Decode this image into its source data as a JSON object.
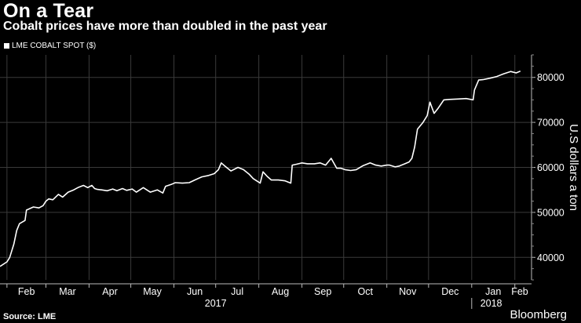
{
  "header": {
    "title": "On a Tear",
    "subtitle": "Cobalt prices have more than doubled in the past year"
  },
  "footer": {
    "source": "Source: LME",
    "brand": "Bloomberg"
  },
  "colors": {
    "background": "#000000",
    "line": "#ffffff",
    "grid": "#3a3a3a",
    "text": "#ffffff"
  },
  "chart_data": {
    "type": "line",
    "title": "On a Tear",
    "subtitle": "Cobalt prices have more than doubled in the past year",
    "xlabel": "",
    "ylabel": "U.S dollars a ton",
    "ylim": [
      35000,
      85000
    ],
    "yticks": [
      40000,
      50000,
      60000,
      70000,
      80000
    ],
    "ytick_labels": [
      "40000",
      "50000",
      "60000",
      "70000",
      "80000"
    ],
    "y_axis_side": "right",
    "grid": true,
    "legend_position": "top-left",
    "xlim": [
      "2017-01-27",
      "2018-02-13"
    ],
    "month_ticks": [
      {
        "label": "Feb",
        "date": "2017-02-01"
      },
      {
        "label": "Mar",
        "date": "2017-03-01"
      },
      {
        "label": "Apr",
        "date": "2017-04-01"
      },
      {
        "label": "May",
        "date": "2017-05-01"
      },
      {
        "label": "Jun",
        "date": "2017-06-01"
      },
      {
        "label": "Jul",
        "date": "2017-07-01"
      },
      {
        "label": "Aug",
        "date": "2017-08-01"
      },
      {
        "label": "Sep",
        "date": "2017-09-01"
      },
      {
        "label": "Oct",
        "date": "2017-10-01"
      },
      {
        "label": "Nov",
        "date": "2017-11-01"
      },
      {
        "label": "Dec",
        "date": "2017-12-01"
      },
      {
        "label": "Jan",
        "date": "2018-01-01"
      },
      {
        "label": "Feb",
        "date": "2018-02-01"
      }
    ],
    "year_labels": [
      {
        "label": "2017",
        "date": "2017-07-01"
      },
      {
        "label": "2018",
        "date": "2018-01-15"
      }
    ],
    "year_divider_date": "2018-01-01",
    "series": [
      {
        "name": "LME COBALT SPOT ($)",
        "x": [
          "2017-01-27",
          "2017-02-01",
          "2017-02-03",
          "2017-02-06",
          "2017-02-08",
          "2017-02-10",
          "2017-02-14",
          "2017-02-15",
          "2017-02-20",
          "2017-02-24",
          "2017-02-27",
          "2017-03-01",
          "2017-03-03",
          "2017-03-06",
          "2017-03-10",
          "2017-03-13",
          "2017-03-17",
          "2017-03-21",
          "2017-03-24",
          "2017-03-28",
          "2017-03-31",
          "2017-04-03",
          "2017-04-05",
          "2017-04-07",
          "2017-04-10",
          "2017-04-14",
          "2017-04-18",
          "2017-04-21",
          "2017-04-25",
          "2017-04-28",
          "2017-05-02",
          "2017-05-05",
          "2017-05-10",
          "2017-05-15",
          "2017-05-20",
          "2017-05-24",
          "2017-05-26",
          "2017-05-30",
          "2017-06-02",
          "2017-06-07",
          "2017-06-12",
          "2017-06-16",
          "2017-06-21",
          "2017-06-26",
          "2017-06-30",
          "2017-07-03",
          "2017-07-05",
          "2017-07-08",
          "2017-07-12",
          "2017-07-17",
          "2017-07-21",
          "2017-07-25",
          "2017-07-28",
          "2017-08-02",
          "2017-08-04",
          "2017-08-07",
          "2017-08-10",
          "2017-08-15",
          "2017-08-20",
          "2017-08-24",
          "2017-08-25",
          "2017-08-28",
          "2017-09-01",
          "2017-09-05",
          "2017-09-10",
          "2017-09-14",
          "2017-09-18",
          "2017-09-22",
          "2017-09-26",
          "2017-09-29",
          "2017-10-02",
          "2017-10-06",
          "2017-10-10",
          "2017-10-15",
          "2017-10-20",
          "2017-10-24",
          "2017-10-28",
          "2017-11-01",
          "2017-11-03",
          "2017-11-07",
          "2017-11-10",
          "2017-11-14",
          "2017-11-17",
          "2017-11-19",
          "2017-11-21",
          "2017-11-23",
          "2017-11-27",
          "2017-11-30",
          "2017-12-02",
          "2017-12-05",
          "2017-12-08",
          "2017-12-12",
          "2017-12-16",
          "2017-12-22",
          "2017-12-28",
          "2018-01-02",
          "2018-01-03",
          "2018-01-06",
          "2018-01-09",
          "2018-01-14",
          "2018-01-19",
          "2018-01-24",
          "2018-01-29",
          "2018-02-02",
          "2018-02-05"
        ],
        "y": [
          38000,
          39000,
          40000,
          43000,
          46000,
          47500,
          48200,
          50500,
          51200,
          51000,
          51500,
          52500,
          53000,
          52800,
          54000,
          53400,
          54500,
          55000,
          55500,
          56000,
          55500,
          56000,
          55300,
          55100,
          55000,
          54800,
          55200,
          54800,
          55300,
          54900,
          55200,
          54500,
          55500,
          54500,
          55000,
          54300,
          55800,
          56200,
          56600,
          56500,
          56600,
          57200,
          57900,
          58200,
          58600,
          59500,
          61000,
          60200,
          59200,
          60000,
          59500,
          58500,
          57500,
          56500,
          59000,
          58000,
          57200,
          57200,
          57000,
          56500,
          60500,
          60700,
          61000,
          60800,
          60800,
          61000,
          60500,
          62000,
          59800,
          59800,
          59500,
          59300,
          59500,
          60400,
          61000,
          60500,
          60300,
          60500,
          60500,
          60100,
          60300,
          60800,
          61200,
          62000,
          64500,
          68500,
          70000,
          71500,
          74500,
          72000,
          73200,
          75000,
          75100,
          75200,
          75300,
          75000,
          77200,
          79400,
          79500,
          79800,
          80200,
          80800,
          81300,
          81000,
          81400
        ]
      }
    ]
  }
}
